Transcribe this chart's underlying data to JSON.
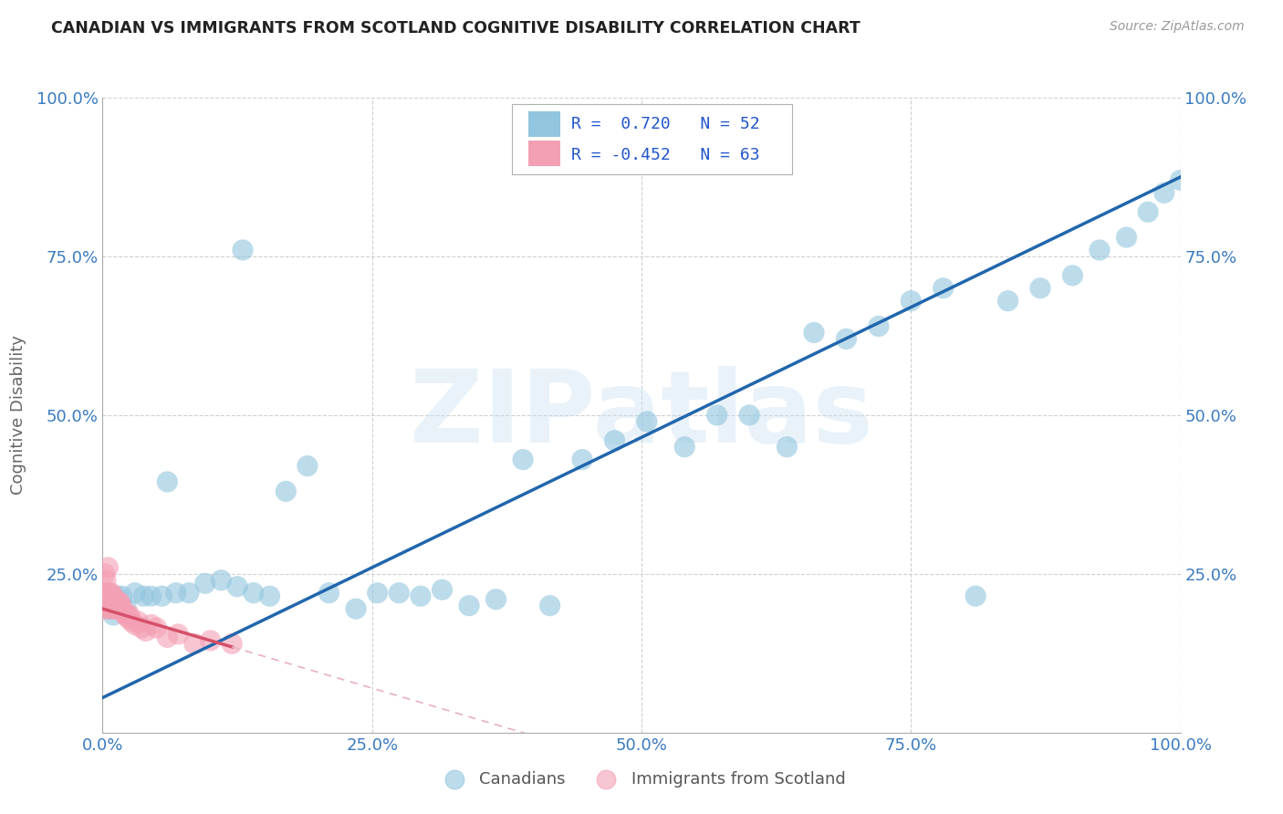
{
  "title": "CANADIAN VS IMMIGRANTS FROM SCOTLAND COGNITIVE DISABILITY CORRELATION CHART",
  "source": "Source: ZipAtlas.com",
  "ylabel": "Cognitive Disability",
  "watermark": "ZIPatlas",
  "legend_blue_r": "R =  0.720",
  "legend_blue_n": "N = 52",
  "legend_pink_r": "R = -0.452",
  "legend_pink_n": "N = 63",
  "blue_fill": "#92c5de",
  "pink_fill": "#f4a0b4",
  "line_blue": "#2166ac",
  "line_pink": "#d6506a",
  "line_pink_ext": "#e8b0c0",
  "grid_color": "#d0d0d0",
  "bg_color": "#ffffff",
  "text_color_blue": "#2255cc",
  "blue_scatter_x": [
    0.004,
    0.007,
    0.01,
    0.013,
    0.018,
    0.022,
    0.03,
    0.038,
    0.045,
    0.055,
    0.068,
    0.08,
    0.095,
    0.11,
    0.125,
    0.14,
    0.155,
    0.17,
    0.19,
    0.21,
    0.235,
    0.255,
    0.275,
    0.295,
    0.315,
    0.34,
    0.365,
    0.39,
    0.415,
    0.445,
    0.475,
    0.505,
    0.54,
    0.57,
    0.6,
    0.635,
    0.66,
    0.69,
    0.72,
    0.75,
    0.78,
    0.81,
    0.84,
    0.87,
    0.9,
    0.925,
    0.95,
    0.97,
    0.985,
    1.0,
    0.06,
    0.13
  ],
  "blue_scatter_y": [
    0.2,
    0.195,
    0.185,
    0.215,
    0.215,
    0.195,
    0.22,
    0.215,
    0.215,
    0.215,
    0.22,
    0.22,
    0.235,
    0.24,
    0.23,
    0.22,
    0.215,
    0.38,
    0.42,
    0.22,
    0.195,
    0.22,
    0.22,
    0.215,
    0.225,
    0.2,
    0.21,
    0.43,
    0.2,
    0.43,
    0.46,
    0.49,
    0.45,
    0.5,
    0.5,
    0.45,
    0.63,
    0.62,
    0.64,
    0.68,
    0.7,
    0.215,
    0.68,
    0.7,
    0.72,
    0.76,
    0.78,
    0.82,
    0.85,
    0.87,
    0.395,
    0.76
  ],
  "pink_scatter_x": [
    0.001,
    0.001,
    0.002,
    0.002,
    0.003,
    0.003,
    0.003,
    0.004,
    0.004,
    0.004,
    0.005,
    0.005,
    0.005,
    0.006,
    0.006,
    0.006,
    0.007,
    0.007,
    0.007,
    0.008,
    0.008,
    0.008,
    0.009,
    0.009,
    0.01,
    0.01,
    0.01,
    0.011,
    0.011,
    0.012,
    0.012,
    0.013,
    0.013,
    0.014,
    0.014,
    0.015,
    0.015,
    0.016,
    0.016,
    0.017,
    0.018,
    0.019,
    0.02,
    0.021,
    0.022,
    0.023,
    0.024,
    0.025,
    0.027,
    0.03,
    0.033,
    0.036,
    0.04,
    0.045,
    0.05,
    0.06,
    0.07,
    0.085,
    0.1,
    0.12,
    0.003,
    0.002,
    0.005
  ],
  "pink_scatter_y": [
    0.195,
    0.21,
    0.2,
    0.215,
    0.205,
    0.21,
    0.22,
    0.195,
    0.205,
    0.215,
    0.2,
    0.21,
    0.22,
    0.2,
    0.21,
    0.22,
    0.2,
    0.205,
    0.215,
    0.2,
    0.21,
    0.22,
    0.195,
    0.21,
    0.2,
    0.205,
    0.215,
    0.195,
    0.208,
    0.2,
    0.208,
    0.195,
    0.205,
    0.195,
    0.205,
    0.195,
    0.205,
    0.195,
    0.205,
    0.2,
    0.195,
    0.19,
    0.19,
    0.185,
    0.185,
    0.185,
    0.18,
    0.185,
    0.175,
    0.17,
    0.175,
    0.165,
    0.16,
    0.17,
    0.165,
    0.15,
    0.155,
    0.14,
    0.145,
    0.14,
    0.24,
    0.25,
    0.26
  ],
  "blue_line_x0": 0.0,
  "blue_line_y0": 0.055,
  "blue_line_x1": 1.0,
  "blue_line_y1": 0.875,
  "pink_line_x0": 0.0,
  "pink_line_y0": 0.195,
  "pink_line_x1": 0.12,
  "pink_line_y1": 0.135,
  "xlim": [
    0.0,
    1.0
  ],
  "ylim": [
    0.0,
    1.0
  ],
  "xticks": [
    0.0,
    0.25,
    0.5,
    0.75,
    1.0
  ],
  "xticklabels": [
    "0.0%",
    "25.0%",
    "50.0%",
    "75.0%",
    "100.0%"
  ],
  "yticks": [
    0.25,
    0.5,
    0.75,
    1.0
  ],
  "yticklabels": [
    "25.0%",
    "50.0%",
    "75.0%",
    "100.0%"
  ]
}
